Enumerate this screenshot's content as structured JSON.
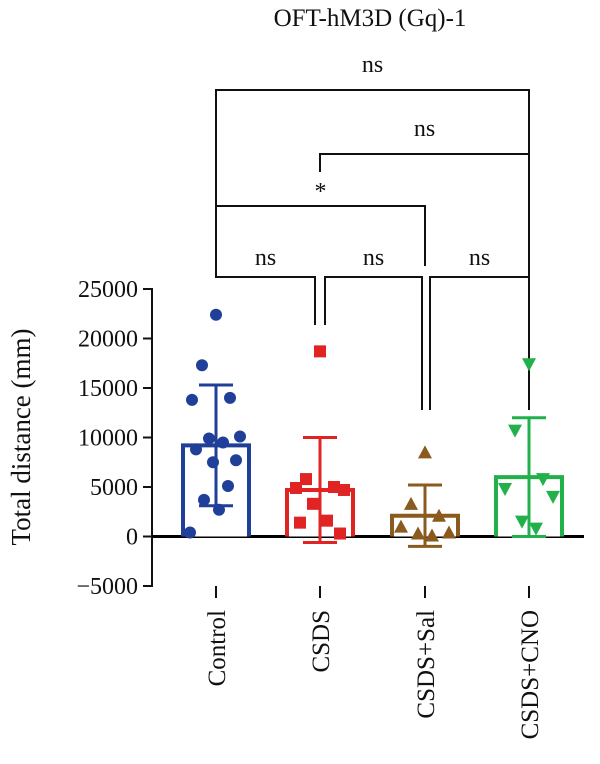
{
  "chart_data": {
    "type": "bar",
    "title": "OFT-hM3D (Gq)-1",
    "ylabel": "Total distance (mm)",
    "xlabel": "",
    "ylim": [
      -5000,
      25000
    ],
    "yticks": [
      -5000,
      0,
      5000,
      10000,
      15000,
      20000,
      25000
    ],
    "ytick_labels": [
      "−5000",
      "0",
      "5000",
      "10000",
      "15000",
      "20000",
      "25000"
    ],
    "categories": [
      "Control",
      "CSDS",
      "CSDS+Sal",
      "CSDS+CNO"
    ],
    "series": [
      {
        "category": "Control",
        "color": "#1F3F99",
        "marker": "circle",
        "mean": 9200,
        "sd": 6100,
        "points": [
          22400,
          17300,
          14000,
          13800,
          10100,
          9900,
          9500,
          8800,
          7700,
          7500,
          5100,
          3700,
          2700,
          400
        ]
      },
      {
        "category": "CSDS",
        "color": "#E02424",
        "marker": "square",
        "mean": 4700,
        "sd": 5300,
        "points": [
          18700,
          5800,
          5000,
          4900,
          4700,
          3300,
          1600,
          1400,
          300
        ]
      },
      {
        "category": "CSDS+Sal",
        "color": "#8A5A1E",
        "marker": "triangle-up",
        "mean": 2100,
        "sd": 3100,
        "points": [
          8500,
          3300,
          2100,
          1000,
          400,
          300,
          100
        ]
      },
      {
        "category": "CSDS+CNO",
        "color": "#22B04B",
        "marker": "triangle-down",
        "mean": 6000,
        "sd": 6000,
        "points": [
          17400,
          10700,
          5800,
          4800,
          4000,
          1500,
          800
        ]
      }
    ],
    "comparisons": [
      {
        "from": 0,
        "to": 3,
        "label": "ns"
      },
      {
        "from": 1,
        "to": 3,
        "label": "ns"
      },
      {
        "from": 0,
        "to": 2,
        "label": "*"
      },
      {
        "from": 0,
        "to": 1,
        "label": "ns"
      },
      {
        "from": 1,
        "to": 2,
        "label": "ns"
      },
      {
        "from": 2,
        "to": 3,
        "label": "ns"
      }
    ],
    "grid": false,
    "legend": "none"
  }
}
